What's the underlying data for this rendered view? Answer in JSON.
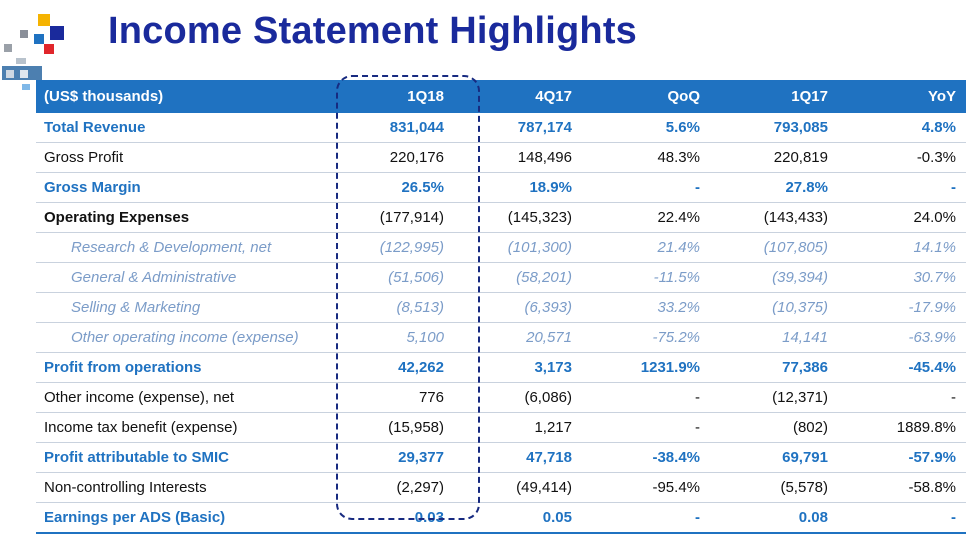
{
  "page": {
    "title": "Income Statement Highlights"
  },
  "table": {
    "columns": [
      "(US$ thousands)",
      "1Q18",
      "4Q17",
      "QoQ",
      "1Q17",
      "YoY"
    ],
    "rows": [
      {
        "style": "hl",
        "label": "Total Revenue",
        "values": [
          "831,044",
          "787,174",
          "5.6%",
          "793,085",
          "4.8%"
        ]
      },
      {
        "style": "plain",
        "label": "Gross Profit",
        "values": [
          "220,176",
          "148,496",
          "48.3%",
          "220,819",
          "-0.3%"
        ]
      },
      {
        "style": "hl",
        "label": "Gross Margin",
        "values": [
          "26.5%",
          "18.9%",
          "-",
          "27.8%",
          "-"
        ]
      },
      {
        "style": "bold",
        "label": "Operating Expenses",
        "values": [
          "(177,914)",
          "(145,323)",
          "22.4%",
          "(143,433)",
          "24.0%"
        ]
      },
      {
        "style": "sub",
        "label": "Research & Development, net",
        "values": [
          "(122,995)",
          "(101,300)",
          "21.4%",
          "(107,805)",
          "14.1%"
        ]
      },
      {
        "style": "sub",
        "label": "General & Administrative",
        "values": [
          "(51,506)",
          "(58,201)",
          "-11.5%",
          "(39,394)",
          "30.7%"
        ]
      },
      {
        "style": "sub",
        "label": "Selling & Marketing",
        "values": [
          "(8,513)",
          "(6,393)",
          "33.2%",
          "(10,375)",
          "-17.9%"
        ]
      },
      {
        "style": "sub",
        "label": "Other operating income (expense)",
        "values": [
          "5,100",
          "20,571",
          "-75.2%",
          "14,141",
          "-63.9%"
        ]
      },
      {
        "style": "hl",
        "label": "Profit from operations",
        "values": [
          "42,262",
          "3,173",
          "1231.9%",
          "77,386",
          "-45.4%"
        ]
      },
      {
        "style": "plain",
        "label": "Other income (expense), net",
        "values": [
          "776",
          "(6,086)",
          "-",
          "(12,371)",
          "-"
        ]
      },
      {
        "style": "plain",
        "label": "Income tax benefit (expense)",
        "values": [
          "(15,958)",
          "1,217",
          "-",
          "(802)",
          "1889.8%"
        ]
      },
      {
        "style": "hl",
        "label": "Profit attributable to SMIC",
        "values": [
          "29,377",
          "47,718",
          "-38.4%",
          "69,791",
          "-57.9%"
        ]
      },
      {
        "style": "plain",
        "label": "Non-controlling Interests",
        "values": [
          "(2,297)",
          "(49,414)",
          "-95.4%",
          "(5,578)",
          "-58.8%"
        ]
      },
      {
        "style": "hl",
        "label": "Earnings per ADS (Basic)",
        "values": [
          "0.03",
          "0.05",
          "-",
          "0.08",
          "-"
        ]
      }
    ]
  },
  "colors": {
    "accent": "#1f72c1",
    "title": "#1a2a9c",
    "highlight_box": "#172a80",
    "sub_text": "#7b9cc8"
  },
  "icons": {
    "logo": "company-logo-collage"
  }
}
